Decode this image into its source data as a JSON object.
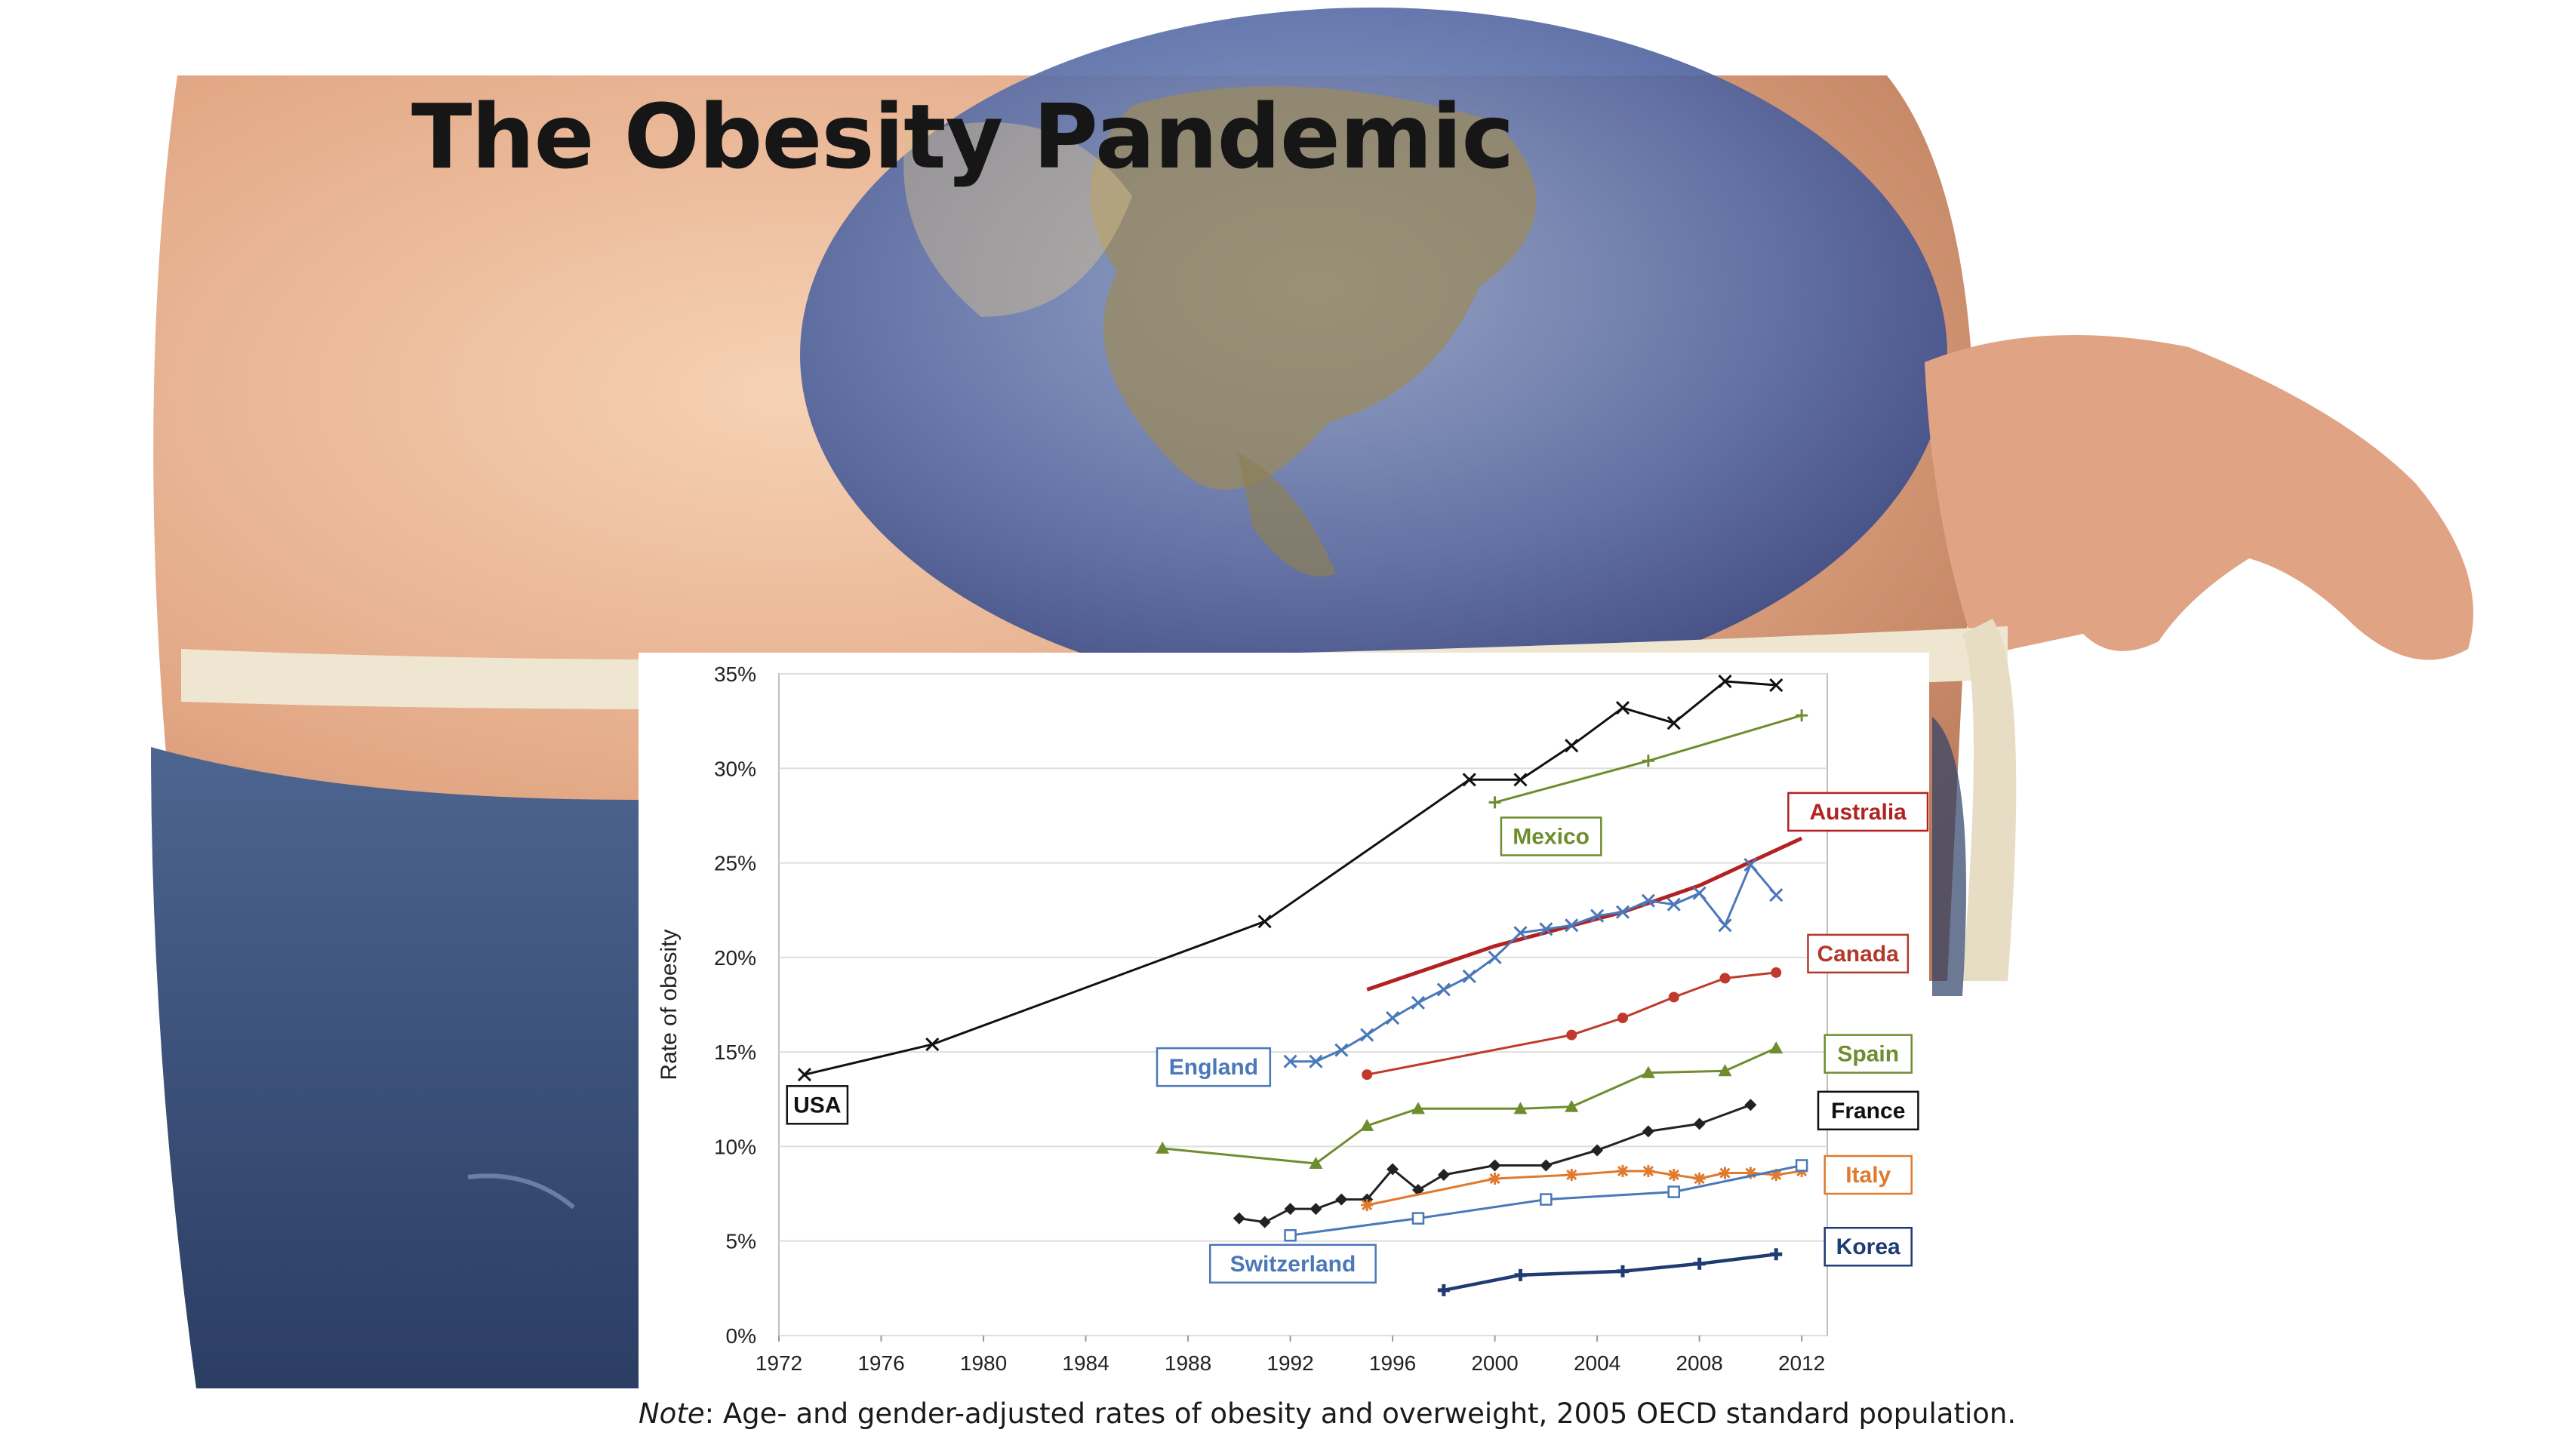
{
  "slide": {
    "title": "The Obesity Pandemic",
    "note_prefix": "Note",
    "note_text": ": Age- and gender-adjusted rates of obesity and overweight, 2005 OECD standard population."
  },
  "background": {
    "description_icon": "globe-belly-measuring-tape-image"
  },
  "chart_data": {
    "type": "line",
    "title": "",
    "xlabel": "",
    "ylabel": "Rate of obesity",
    "xlim": [
      1972,
      2013
    ],
    "ylim": [
      0,
      35
    ],
    "x_ticks": [
      "1972",
      "1976",
      "1980",
      "1984",
      "1988",
      "1992",
      "1996",
      "2000",
      "2004",
      "2008",
      "2012"
    ],
    "y_ticks": [
      "0%",
      "5%",
      "10%",
      "15%",
      "20%",
      "25%",
      "30%",
      "35%"
    ],
    "grid": "horizontal",
    "series": [
      {
        "name": "USA",
        "color": "#111111",
        "marker": "x",
        "label_color": "#111111",
        "points": [
          [
            1973,
            13.8
          ],
          [
            1978,
            15.4
          ],
          [
            1991,
            21.9
          ],
          [
            1999,
            29.4
          ],
          [
            2001,
            29.4
          ],
          [
            2003,
            31.2
          ],
          [
            2005,
            33.2
          ],
          [
            2007,
            32.4
          ],
          [
            2009,
            34.6
          ],
          [
            2011,
            34.4
          ]
        ]
      },
      {
        "name": "Mexico",
        "color": "#6f8d2f",
        "marker": "+",
        "label_color": "#6f8d2f",
        "points": [
          [
            2000,
            28.2
          ],
          [
            2006,
            30.4
          ],
          [
            2012,
            32.8
          ]
        ]
      },
      {
        "name": "Australia",
        "color": "#b22222",
        "marker": "none",
        "label_color": "#b22222",
        "points": [
          [
            1995,
            18.3
          ],
          [
            2000,
            20.6
          ],
          [
            2005,
            22.4
          ],
          [
            2008,
            23.8
          ],
          [
            2012,
            26.3
          ]
        ]
      },
      {
        "name": "England",
        "color": "#4a78b8",
        "marker": "x",
        "label_color": "#4a78b8",
        "points": [
          [
            1992,
            14.5
          ],
          [
            1993,
            14.5
          ],
          [
            1994,
            15.1
          ],
          [
            1995,
            15.9
          ],
          [
            1996,
            16.8
          ],
          [
            1997,
            17.6
          ],
          [
            1998,
            18.3
          ],
          [
            1999,
            19.0
          ],
          [
            2000,
            20.0
          ],
          [
            2001,
            21.3
          ],
          [
            2002,
            21.5
          ],
          [
            2003,
            21.7
          ],
          [
            2004,
            22.2
          ],
          [
            2005,
            22.4
          ],
          [
            2006,
            23.0
          ],
          [
            2007,
            22.8
          ],
          [
            2008,
            23.4
          ],
          [
            2009,
            21.7
          ],
          [
            2010,
            24.9
          ],
          [
            2011,
            23.3
          ]
        ]
      },
      {
        "name": "Canada",
        "color": "#c0392b",
        "marker": "circle",
        "label_color": "#b03a2e",
        "points": [
          [
            1995,
            13.8
          ],
          [
            2003,
            15.9
          ],
          [
            2005,
            16.8
          ],
          [
            2007,
            17.9
          ],
          [
            2009,
            18.9
          ],
          [
            2011,
            19.2
          ]
        ]
      },
      {
        "name": "Spain",
        "color": "#6f8d2f",
        "marker": "triangle",
        "label_color": "#6f8d2f",
        "points": [
          [
            1987,
            9.9
          ],
          [
            1993,
            9.1
          ],
          [
            1995,
            11.1
          ],
          [
            1997,
            12.0
          ],
          [
            2001,
            12.0
          ],
          [
            2003,
            12.1
          ],
          [
            2006,
            13.9
          ],
          [
            2009,
            14.0
          ],
          [
            2011,
            15.2
          ]
        ]
      },
      {
        "name": "France",
        "color": "#222222",
        "marker": "diamond",
        "label_color": "#111111",
        "points": [
          [
            1990,
            6.2
          ],
          [
            1991,
            6.0
          ],
          [
            1992,
            6.7
          ],
          [
            1993,
            6.7
          ],
          [
            1994,
            7.2
          ],
          [
            1995,
            7.2
          ],
          [
            1996,
            8.8
          ],
          [
            1997,
            7.7
          ],
          [
            1998,
            8.5
          ],
          [
            2000,
            9.0
          ],
          [
            2002,
            9.0
          ],
          [
            2004,
            9.8
          ],
          [
            2006,
            10.8
          ],
          [
            2008,
            11.2
          ],
          [
            2010,
            12.2
          ]
        ]
      },
      {
        "name": "Italy",
        "color": "#e07a2e",
        "marker": "star",
        "label_color": "#e07a2e",
        "points": [
          [
            1995,
            6.9
          ],
          [
            2000,
            8.3
          ],
          [
            2003,
            8.5
          ],
          [
            2005,
            8.7
          ],
          [
            2006,
            8.7
          ],
          [
            2007,
            8.5
          ],
          [
            2008,
            8.3
          ],
          [
            2009,
            8.6
          ],
          [
            2010,
            8.6
          ],
          [
            2011,
            8.5
          ],
          [
            2012,
            8.7
          ]
        ]
      },
      {
        "name": "Switzerland",
        "color": "#4a78b8",
        "marker": "square",
        "label_color": "#4a78b8",
        "points": [
          [
            1992,
            5.3
          ],
          [
            1997,
            6.2
          ],
          [
            2002,
            7.2
          ],
          [
            2007,
            7.6
          ],
          [
            2012,
            9.0
          ]
        ]
      },
      {
        "name": "Korea",
        "color": "#1f3b73",
        "marker": "plus",
        "label_color": "#1f3b73",
        "points": [
          [
            1998,
            2.4
          ],
          [
            2001,
            3.2
          ],
          [
            2005,
            3.4
          ],
          [
            2008,
            3.8
          ],
          [
            2011,
            4.3
          ]
        ]
      }
    ],
    "label_boxes": [
      {
        "series": "USA",
        "text": "USA",
        "x": 1973.5,
        "y": 12.2
      },
      {
        "series": "Mexico",
        "text": "Mexico",
        "x": 2002.2,
        "y": 26.4
      },
      {
        "series": "Australia",
        "text": "Australia",
        "x": 2014.2,
        "y": 27.7
      },
      {
        "series": "Canada",
        "text": "Canada",
        "x": 2014.2,
        "y": 20.2
      },
      {
        "series": "England",
        "text": "England",
        "x": 1989.0,
        "y": 14.2
      },
      {
        "series": "Spain",
        "text": "Spain",
        "x": 2014.6,
        "y": 14.9
      },
      {
        "series": "France",
        "text": "France",
        "x": 2014.6,
        "y": 11.9
      },
      {
        "series": "Italy",
        "text": "Italy",
        "x": 2014.6,
        "y": 8.5
      },
      {
        "series": "Switzerland",
        "text": "Switzerland",
        "x": 1992.1,
        "y": 3.8
      },
      {
        "series": "Korea",
        "text": "Korea",
        "x": 2014.6,
        "y": 4.7
      }
    ]
  }
}
